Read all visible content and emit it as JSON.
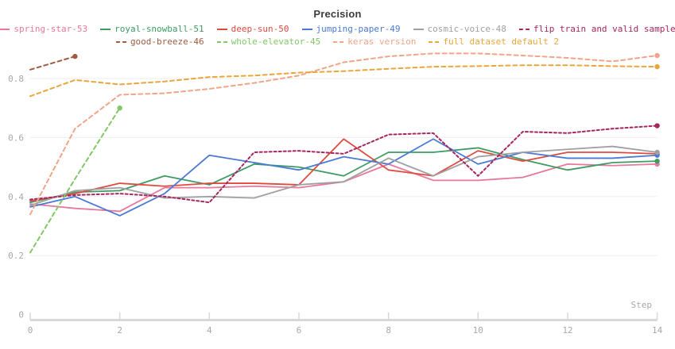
{
  "chart_data": {
    "type": "line",
    "title": "Precision",
    "xlabel": "Step",
    "x": [
      0,
      1,
      2,
      3,
      4,
      5,
      6,
      7,
      8,
      9,
      10,
      11,
      12,
      13,
      14
    ],
    "xlim": [
      0,
      14
    ],
    "ylim": [
      0,
      0.9
    ],
    "x_ticks": [
      0,
      2,
      4,
      6,
      8,
      10,
      12,
      14
    ],
    "x_tick_labels": [
      "0",
      "2",
      "4",
      "6",
      "8",
      "10",
      "12",
      "14"
    ],
    "y_ticks": [
      0,
      0.2,
      0.4,
      0.6,
      0.8
    ],
    "y_tick_labels": [
      "0",
      "0.2",
      "0.4",
      "0.6",
      "0.8"
    ],
    "grid": "horizontal",
    "legend_position": "top",
    "legend_row_break": 6,
    "axis_color": "#d8d8d8",
    "grid_color": "#ededed",
    "tick_label_color": "#a8a8a8",
    "series": [
      {
        "name": "spring-star-53",
        "color": "#e8789a",
        "dash": false,
        "values": [
          0.375,
          0.36,
          0.35,
          0.43,
          0.43,
          0.435,
          0.43,
          0.45,
          0.51,
          0.455,
          0.455,
          0.465,
          0.51,
          0.505,
          0.51
        ]
      },
      {
        "name": "royal-snowball-51",
        "color": "#3f9b63",
        "dash": false,
        "values": [
          0.38,
          0.415,
          0.42,
          0.47,
          0.44,
          0.51,
          0.5,
          0.47,
          0.55,
          0.55,
          0.565,
          0.525,
          0.49,
          0.515,
          0.52
        ]
      },
      {
        "name": "deep-sun-50",
        "color": "#dd4b40",
        "dash": false,
        "values": [
          0.385,
          0.41,
          0.445,
          0.435,
          0.445,
          0.445,
          0.44,
          0.595,
          0.49,
          0.47,
          0.555,
          0.52,
          0.55,
          0.55,
          0.545
        ]
      },
      {
        "name": "jumping-paper-49",
        "color": "#4a7ad4",
        "dash": false,
        "values": [
          0.365,
          0.4,
          0.335,
          0.41,
          0.54,
          0.515,
          0.49,
          0.535,
          0.51,
          0.595,
          0.51,
          0.55,
          0.53,
          0.53,
          0.54
        ]
      },
      {
        "name": "cosmic-voice-48",
        "color": "#a0a0a0",
        "dash": false,
        "values": [
          0.37,
          0.42,
          0.43,
          0.395,
          0.4,
          0.395,
          0.44,
          0.45,
          0.53,
          0.47,
          0.535,
          0.55,
          0.56,
          0.57,
          0.55
        ]
      },
      {
        "name": "flip train and valid sample",
        "color": "#a62760",
        "dash": true,
        "dash_pattern": "3,3",
        "values": [
          0.39,
          0.405,
          0.41,
          0.4,
          0.38,
          0.55,
          0.555,
          0.545,
          0.61,
          0.615,
          0.47,
          0.62,
          0.615,
          0.63,
          0.64
        ]
      },
      {
        "name": "good-breeze-46",
        "color": "#9e5b40",
        "dash": true,
        "dash_pattern": "5,4",
        "values": [
          0.83,
          0.875
        ]
      },
      {
        "name": "whole-elevator-45",
        "color": "#83c667",
        "dash": true,
        "dash_pattern": "5,4",
        "values": [
          0.21,
          0.46,
          0.7
        ]
      },
      {
        "name": "keras version",
        "color": "#f2a488",
        "dash": true,
        "dash_pattern": "5,4",
        "values": [
          0.34,
          0.63,
          0.745,
          0.75,
          0.765,
          0.785,
          0.81,
          0.855,
          0.875,
          0.885,
          0.885,
          0.878,
          0.87,
          0.858,
          0.878
        ]
      },
      {
        "name": "full dataset default 2",
        "color": "#e9a63b",
        "dash": true,
        "dash_pattern": "5,4",
        "values": [
          0.74,
          0.795,
          0.78,
          0.79,
          0.805,
          0.81,
          0.82,
          0.825,
          0.833,
          0.84,
          0.842,
          0.845,
          0.845,
          0.842,
          0.84
        ]
      }
    ]
  }
}
